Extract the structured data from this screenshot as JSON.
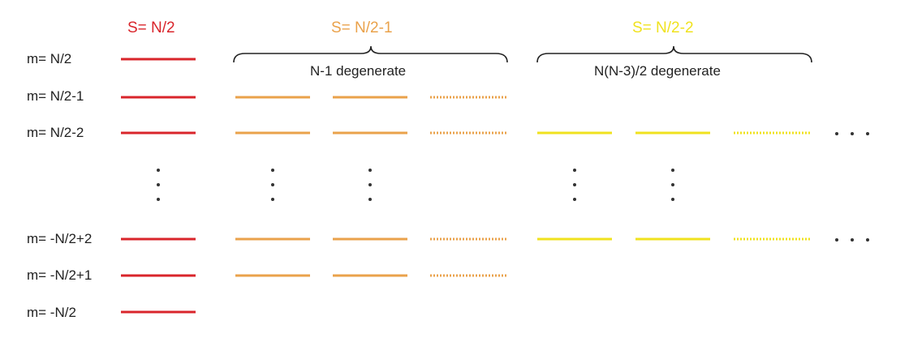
{
  "headers": {
    "s1": "S= N/2",
    "s2": "S= N/2-1",
    "s3": "S= N/2-2"
  },
  "brace_labels": {
    "s2": "N-1 degenerate",
    "s3": "N(N-3)/2 degenerate"
  },
  "m_labels": [
    "m= N/2",
    "m= N/2-1",
    "m= N/2-2",
    "m= -N/2+2",
    "m= -N/2+1",
    "m= -N/2"
  ],
  "colors": {
    "s1": "#d9252b",
    "s2": "#eaa24b",
    "s3": "#f0e21e",
    "text": "#222222",
    "dots": "#333333"
  }
}
